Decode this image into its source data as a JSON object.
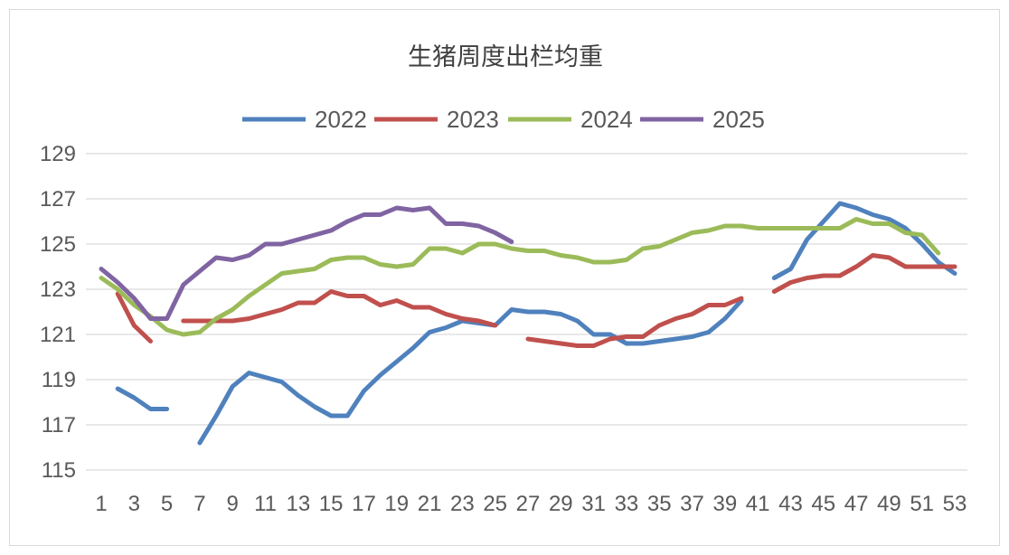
{
  "chart_data": {
    "type": "line",
    "title": "生猪周度出栏均重",
    "xlabel": "",
    "ylabel": "",
    "ylim": [
      115,
      129
    ],
    "yticks": [
      115,
      117,
      119,
      121,
      123,
      125,
      127,
      129
    ],
    "xlim": [
      1,
      53
    ],
    "xticks": [
      1,
      3,
      5,
      7,
      9,
      11,
      13,
      15,
      17,
      19,
      21,
      23,
      25,
      27,
      29,
      31,
      33,
      35,
      37,
      39,
      41,
      43,
      45,
      47,
      49,
      51,
      53
    ],
    "grid": "horizontal",
    "legend_position": "top",
    "series": [
      {
        "name": "2022",
        "color": "#4f81bd",
        "x": [
          2,
          3,
          4,
          5,
          7,
          8,
          9,
          10,
          11,
          12,
          13,
          14,
          15,
          16,
          17,
          18,
          19,
          20,
          21,
          22,
          23,
          24,
          25,
          26,
          27,
          28,
          29,
          30,
          31,
          32,
          33,
          34,
          35,
          36,
          37,
          38,
          39,
          40,
          42,
          43,
          44,
          45,
          46,
          47,
          48,
          49,
          50,
          51,
          52,
          53
        ],
        "values": [
          118.6,
          118.2,
          117.7,
          117.7,
          116.2,
          117.4,
          118.7,
          119.3,
          119.1,
          118.9,
          118.3,
          117.8,
          117.4,
          117.4,
          118.5,
          119.2,
          119.8,
          120.4,
          121.1,
          121.3,
          121.6,
          121.5,
          121.4,
          122.1,
          122.0,
          122.0,
          121.9,
          121.6,
          121.0,
          121.0,
          120.6,
          120.6,
          120.7,
          120.8,
          120.9,
          121.1,
          121.7,
          122.5,
          123.5,
          123.9,
          125.2,
          126.0,
          126.8,
          126.6,
          126.3,
          126.1,
          125.7,
          125.0,
          124.2,
          123.7
        ]
      },
      {
        "name": "2023",
        "color": "#c0504d",
        "x": [
          2,
          3,
          4,
          6,
          7,
          8,
          9,
          10,
          11,
          12,
          13,
          14,
          15,
          16,
          17,
          18,
          19,
          20,
          21,
          22,
          23,
          24,
          25,
          27,
          28,
          29,
          30,
          31,
          32,
          33,
          34,
          35,
          36,
          37,
          38,
          39,
          40,
          42,
          43,
          44,
          45,
          46,
          47,
          48,
          49,
          50,
          51,
          52,
          53
        ],
        "values": [
          122.8,
          121.4,
          120.7,
          121.6,
          121.6,
          121.6,
          121.6,
          121.7,
          121.9,
          122.1,
          122.4,
          122.4,
          122.9,
          122.7,
          122.7,
          122.3,
          122.5,
          122.2,
          122.2,
          121.9,
          121.7,
          121.6,
          121.4,
          120.8,
          120.7,
          120.6,
          120.5,
          120.5,
          120.8,
          120.9,
          120.9,
          121.4,
          121.7,
          121.9,
          122.3,
          122.3,
          122.6,
          122.9,
          123.3,
          123.5,
          123.6,
          123.6,
          124.0,
          124.5,
          124.4,
          124.0,
          124.0,
          124.0,
          124.0
        ]
      },
      {
        "name": "2024",
        "color": "#9bbb59",
        "x": [
          1,
          2,
          3,
          4,
          5,
          6,
          7,
          8,
          9,
          10,
          11,
          12,
          13,
          14,
          15,
          16,
          17,
          18,
          19,
          20,
          21,
          22,
          23,
          24,
          25,
          26,
          27,
          28,
          29,
          30,
          31,
          32,
          33,
          34,
          35,
          36,
          37,
          38,
          39,
          40,
          41,
          42,
          43,
          44,
          45,
          46,
          47,
          48,
          49,
          50,
          51,
          52
        ],
        "values": [
          123.5,
          123.0,
          122.3,
          121.8,
          121.2,
          121.0,
          121.1,
          121.7,
          122.1,
          122.7,
          123.2,
          123.7,
          123.8,
          123.9,
          124.3,
          124.4,
          124.4,
          124.1,
          124.0,
          124.1,
          124.8,
          124.8,
          124.6,
          125.0,
          125.0,
          124.8,
          124.7,
          124.7,
          124.5,
          124.4,
          124.2,
          124.2,
          124.3,
          124.8,
          124.9,
          125.2,
          125.5,
          125.6,
          125.8,
          125.8,
          125.7,
          125.7,
          125.7,
          125.7,
          125.7,
          125.7,
          126.1,
          125.9,
          125.9,
          125.5,
          125.4,
          124.6
        ]
      },
      {
        "name": "2025",
        "color": "#8064a2",
        "x": [
          1,
          2,
          3,
          4,
          5,
          6,
          7,
          8,
          9,
          10,
          11,
          12,
          13,
          14,
          15,
          16,
          17,
          18,
          19,
          20,
          21,
          22,
          23,
          24,
          25,
          26
        ],
        "values": [
          123.9,
          123.3,
          122.6,
          121.7,
          121.7,
          123.2,
          123.8,
          124.4,
          124.3,
          124.5,
          125.0,
          125.0,
          125.2,
          125.4,
          125.6,
          126.0,
          126.3,
          126.3,
          126.6,
          126.5,
          126.6,
          125.9,
          125.9,
          125.8,
          125.5,
          125.1
        ]
      }
    ]
  }
}
